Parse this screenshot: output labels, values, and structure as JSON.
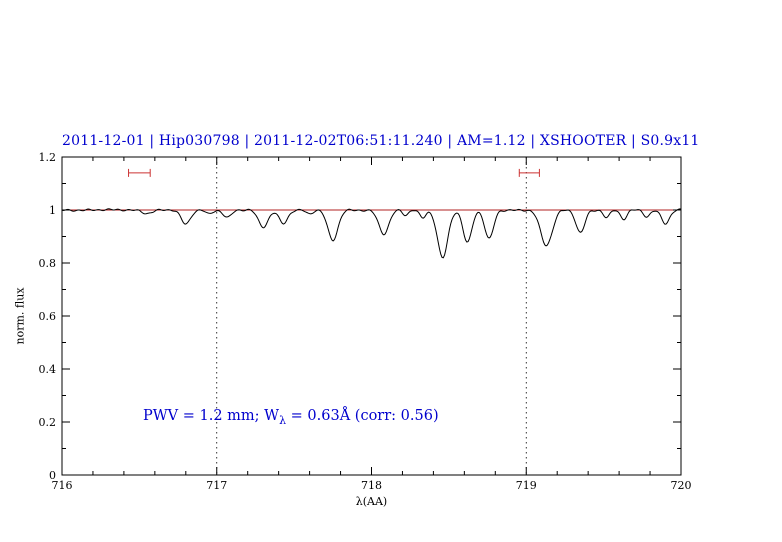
{
  "annotation": {
    "prefix": "PWV = 1.2 mm; W",
    "subscript": "λ",
    "suffix": " = 0.63Å (corr: 0.56)"
  },
  "colors": {
    "accent_blue": "#0000cd",
    "marker_red": "#cc3333",
    "reference_red": "#b22222",
    "axis_black": "#000000",
    "background": "#ffffff"
  },
  "chart_data": {
    "type": "line",
    "title": "2011-12-01 | Hip030798 | 2011-12-02T06:51:11.240 | AM=1.12 | XSHOOTER | S0.9x11",
    "xlabel": "λ(AA)",
    "ylabel": "norm. flux",
    "xlim": [
      716,
      720
    ],
    "ylim": [
      0,
      1.2
    ],
    "xticks": [
      716,
      717,
      718,
      719,
      720
    ],
    "xtick_labels": [
      "716",
      "717",
      "718",
      "719",
      "720"
    ],
    "x_minor_step": 0.2,
    "yticks": [
      0,
      0.2,
      0.4,
      0.6,
      0.8,
      1,
      1.2
    ],
    "ytick_labels": [
      "0",
      "0.2",
      "0.4",
      "0.6",
      "0.8",
      "1",
      "1.2"
    ],
    "y_minor_step": 0.1,
    "grid": false,
    "reference_line": {
      "y": 1.0,
      "color": "#b22222"
    },
    "vlines": [
      717,
      719
    ],
    "vline_style": "dotted",
    "markers": [
      {
        "x_center": 716.5,
        "half_width": 0.07,
        "y": 1.14,
        "color": "#cc3333",
        "shape": "error-bar"
      },
      {
        "x_center": 719.02,
        "half_width": 0.065,
        "y": 1.14,
        "color": "#cc3333",
        "shape": "error-bar"
      }
    ],
    "spectrum": {
      "continuum": 1.0,
      "noise_amplitude": 0.004,
      "sample_step": 0.008,
      "lines": [
        {
          "center": 716.55,
          "depth": 0.012,
          "sigma": 0.03
        },
        {
          "center": 716.8,
          "depth": 0.055,
          "sigma": 0.03
        },
        {
          "center": 716.95,
          "depth": 0.015,
          "sigma": 0.02
        },
        {
          "center": 717.07,
          "depth": 0.028,
          "sigma": 0.025
        },
        {
          "center": 717.3,
          "depth": 0.065,
          "sigma": 0.032
        },
        {
          "center": 717.43,
          "depth": 0.05,
          "sigma": 0.028
        },
        {
          "center": 717.6,
          "depth": 0.015,
          "sigma": 0.02
        },
        {
          "center": 717.75,
          "depth": 0.115,
          "sigma": 0.033
        },
        {
          "center": 718.08,
          "depth": 0.09,
          "sigma": 0.033
        },
        {
          "center": 718.22,
          "depth": 0.02,
          "sigma": 0.02
        },
        {
          "center": 718.33,
          "depth": 0.03,
          "sigma": 0.02
        },
        {
          "center": 718.46,
          "depth": 0.18,
          "sigma": 0.033
        },
        {
          "center": 718.62,
          "depth": 0.125,
          "sigma": 0.028
        },
        {
          "center": 718.76,
          "depth": 0.11,
          "sigma": 0.028
        },
        {
          "center": 719.13,
          "depth": 0.135,
          "sigma": 0.038
        },
        {
          "center": 719.35,
          "depth": 0.085,
          "sigma": 0.028
        },
        {
          "center": 719.52,
          "depth": 0.03,
          "sigma": 0.02
        },
        {
          "center": 719.63,
          "depth": 0.035,
          "sigma": 0.022
        },
        {
          "center": 719.78,
          "depth": 0.025,
          "sigma": 0.02
        },
        {
          "center": 719.9,
          "depth": 0.05,
          "sigma": 0.026
        }
      ]
    }
  }
}
